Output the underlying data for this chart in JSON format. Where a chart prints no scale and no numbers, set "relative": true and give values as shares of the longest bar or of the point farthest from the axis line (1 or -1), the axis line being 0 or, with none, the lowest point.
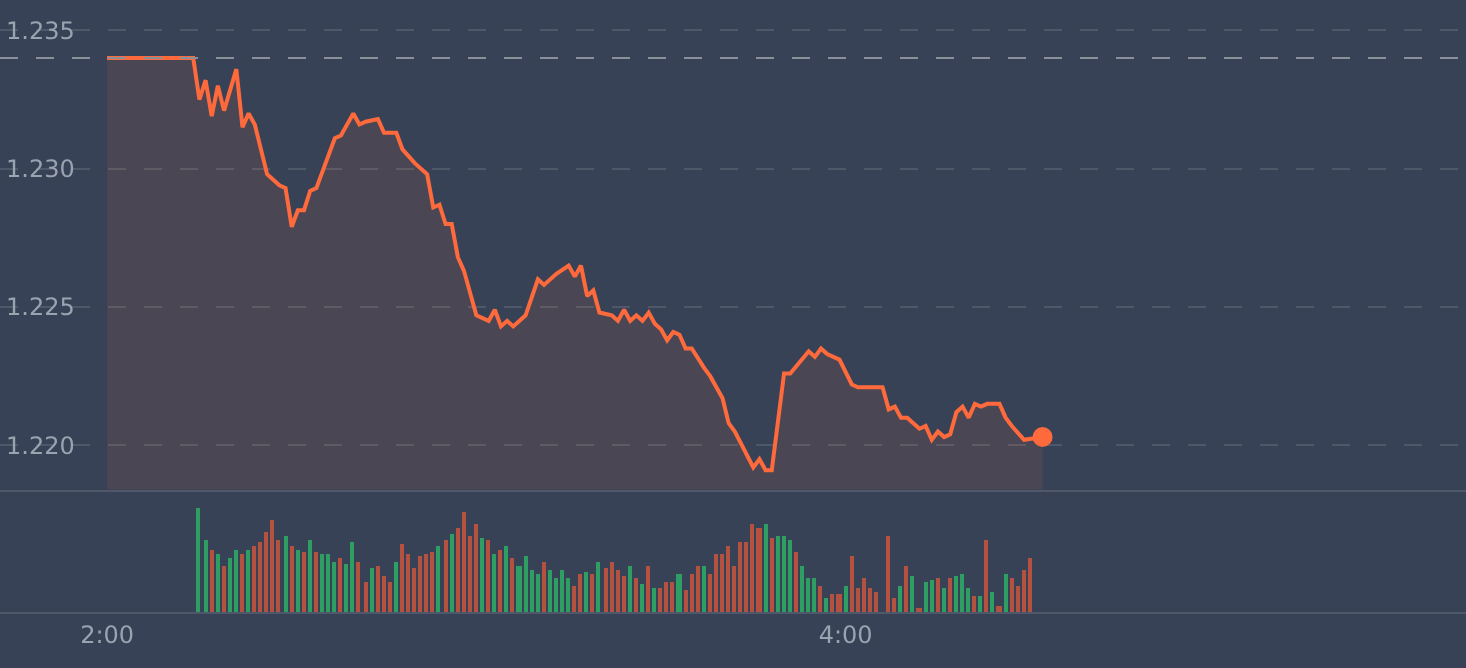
{
  "chart_data": [
    {
      "type": "area",
      "xlim": [
        1.71,
        5.68
      ],
      "ylim": [
        1.2184,
        1.2361
      ],
      "yticks": [
        {
          "value": 1.22,
          "label": "1.220"
        },
        1.225,
        {
          "value": 1.23,
          "label": "1.230"
        },
        1.235
      ],
      "grid": "y",
      "tick_labels": "y",
      "marker": "none",
      "line_style": "solid",
      "ref_lines": [
        {
          "axis": "y",
          "value": 1.234,
          "color": "#8a909a",
          "line_style": "dashed"
        }
      ],
      "series": [
        {
          "type": "area",
          "color": "#ff6a3d",
          "x": [
            2,
            2.2333,
            2.25,
            2.2667,
            2.2833,
            2.3,
            2.3167,
            2.35,
            2.3667,
            2.3833,
            2.4,
            2.4333,
            2.4667,
            2.4833,
            2.5,
            2.5167,
            2.5333,
            2.55,
            2.5667,
            2.6167,
            2.6333,
            2.6667,
            2.6833,
            2.7,
            2.7333,
            2.75,
            2.7833,
            2.8,
            2.8333,
            2.8667,
            2.8833,
            2.9,
            2.9167,
            2.9333,
            2.95,
            2.9667,
            3,
            3.0333,
            3.05,
            3.0667,
            3.0833,
            3.1,
            3.1333,
            3.1667,
            3.1833,
            3.2167,
            3.25,
            3.2667,
            3.2833,
            3.3,
            3.3167,
            3.3333,
            3.3667,
            3.3833,
            3.4,
            3.4167,
            3.4333,
            3.45,
            3.4667,
            3.4833,
            3.5,
            3.5167,
            3.5333,
            3.55,
            3.5667,
            3.5833,
            3.6167,
            3.6333,
            3.6667,
            3.6833,
            3.7,
            3.75,
            3.7667,
            3.7833,
            3.8,
            3.8333,
            3.85,
            3.9,
            3.9167,
            3.9333,
            3.95,
            3.9833,
            4.0167,
            4.0333,
            4.1,
            4.1167,
            4.1333,
            4.15,
            4.1667,
            4.2,
            4.2167,
            4.2333,
            4.25,
            4.2667,
            4.2833,
            4.3,
            4.3167,
            4.3333,
            4.35,
            4.3667,
            4.3833,
            4.4167,
            4.4333,
            4.45,
            4.4833,
            4.5333
          ],
          "values": [
            1.234,
            1.234,
            1.2325,
            1.2332,
            1.2319,
            1.233,
            1.2321,
            1.2336,
            1.2315,
            1.232,
            1.2316,
            1.2298,
            1.2294,
            1.2293,
            1.2279,
            1.2285,
            1.2285,
            1.2292,
            1.2293,
            1.2311,
            1.2312,
            1.232,
            1.2316,
            1.2317,
            1.2318,
            1.2313,
            1.2313,
            1.2307,
            1.2302,
            1.2298,
            1.2286,
            1.2287,
            1.228,
            1.228,
            1.2268,
            1.2263,
            1.2247,
            1.2245,
            1.2249,
            1.2243,
            1.2245,
            1.2243,
            1.2247,
            1.226,
            1.2258,
            1.2262,
            1.2265,
            1.2261,
            1.2265,
            1.2254,
            1.2256,
            1.2248,
            1.2247,
            1.2245,
            1.2249,
            1.2245,
            1.2247,
            1.2245,
            1.2248,
            1.2244,
            1.2242,
            1.2238,
            1.2241,
            1.224,
            1.2235,
            1.2235,
            1.2228,
            1.2225,
            1.2217,
            1.2208,
            1.2205,
            1.2192,
            1.2195,
            1.2191,
            1.2191,
            1.2226,
            1.2226,
            1.2234,
            1.2232,
            1.2235,
            1.2233,
            1.2231,
            1.2222,
            1.2221,
            1.2221,
            1.2213,
            1.2214,
            1.221,
            1.221,
            1.2206,
            1.2207,
            1.2202,
            1.2205,
            1.2203,
            1.2204,
            1.2212,
            1.2214,
            1.221,
            1.2215,
            1.2214,
            1.2215,
            1.2215,
            1.221,
            1.2207,
            1.2202,
            1.2203
          ]
        },
        {
          "type": "scatter",
          "color": "#ff6a3d",
          "marker": "circle",
          "x": [
            4.5333
          ],
          "values": [
            1.2203
          ]
        }
      ]
    },
    {
      "type": "bar",
      "relative": true,
      "xlim": [
        1.71,
        5.68
      ],
      "xticks": [
        {
          "value": 2,
          "label": "2:00"
        },
        {
          "value": 4,
          "label": "4:00"
        }
      ],
      "tick_labels": "x",
      "x": [
        2.25,
        2.2667,
        2.2833,
        2.3,
        2.3167,
        2.3333,
        2.35,
        2.3667,
        2.3833,
        2.4,
        2.4167,
        2.4333,
        2.45,
        2.4667,
        2.4833,
        2.5,
        2.5167,
        2.5333,
        2.55,
        2.5667,
        2.5833,
        2.6,
        2.6167,
        2.6333,
        2.65,
        2.6667,
        2.6833,
        2.7,
        2.7167,
        2.7333,
        2.75,
        2.7667,
        2.7833,
        2.8,
        2.8167,
        2.8333,
        2.85,
        2.8667,
        2.8833,
        2.9,
        2.9167,
        2.9333,
        2.95,
        2.9667,
        2.9833,
        3,
        3.0167,
        3.0333,
        3.05,
        3.0667,
        3.0833,
        3.1,
        3.1167,
        3.1333,
        3.15,
        3.1667,
        3.1833,
        3.2,
        3.2167,
        3.2333,
        3.25,
        3.2667,
        3.2833,
        3.3,
        3.3167,
        3.3333,
        3.35,
        3.3667,
        3.3833,
        3.4,
        3.4167,
        3.4333,
        3.45,
        3.4667,
        3.4833,
        3.5,
        3.5167,
        3.5333,
        3.55,
        3.5667,
        3.5833,
        3.6,
        3.6167,
        3.6333,
        3.65,
        3.6667,
        3.6833,
        3.7,
        3.7167,
        3.7333,
        3.75,
        3.7667,
        3.7833,
        3.8,
        3.8167,
        3.8333,
        3.85,
        3.8667,
        3.8833,
        3.9,
        3.9167,
        3.9333,
        3.95,
        3.9667,
        3.9833,
        4,
        4.0167,
        4.0333,
        4.05,
        4.0667,
        4.0833,
        4.1,
        4.1167,
        4.1333,
        4.15,
        4.1667,
        4.1833,
        4.2,
        4.2167,
        4.2333,
        4.25,
        4.2667,
        4.2833,
        4.3,
        4.3167,
        4.3333,
        4.35,
        4.3667,
        4.3833,
        4.4,
        4.4167,
        4.4333,
        4.45,
        4.4667,
        4.4833,
        4.5
      ],
      "values": [
        1.0,
        0.69,
        0.6,
        0.55,
        0.45,
        0.51,
        0.59,
        0.55,
        0.59,
        0.64,
        0.67,
        0.77,
        0.89,
        0.69,
        0.73,
        0.64,
        0.59,
        0.57,
        0.69,
        0.57,
        0.55,
        0.55,
        0.49,
        0.51,
        0.47,
        0.67,
        0.48,
        0.29,
        0.43,
        0.44,
        0.35,
        0.28,
        0.49,
        0.65,
        0.55,
        0.43,
        0.53,
        0.55,
        0.57,
        0.63,
        0.69,
        0.75,
        0.8,
        0.97,
        0.73,
        0.84,
        0.72,
        0.69,
        0.56,
        0.6,
        0.64,
        0.51,
        0.45,
        0.53,
        0.4,
        0.37,
        0.49,
        0.4,
        0.33,
        0.41,
        0.33,
        0.25,
        0.36,
        0.39,
        0.36,
        0.48,
        0.43,
        0.48,
        0.4,
        0.35,
        0.44,
        0.33,
        0.27,
        0.44,
        0.24,
        0.24,
        0.29,
        0.28,
        0.36,
        0.21,
        0.37,
        0.45,
        0.44,
        0.37,
        0.56,
        0.55,
        0.64,
        0.45,
        0.67,
        0.68,
        0.84,
        0.8,
        0.84,
        0.71,
        0.73,
        0.73,
        0.69,
        0.57,
        0.45,
        0.33,
        0.32,
        0.25,
        0.13,
        0.17,
        0.17,
        0.25,
        0.53,
        0.24,
        0.33,
        0.24,
        0.19,
        null,
        0.73,
        0.13,
        0.25,
        0.45,
        0.35,
        0.04,
        0.28,
        0.31,
        0.33,
        0.23,
        0.33,
        0.35,
        0.37,
        0.23,
        0.15,
        0.15,
        0.69,
        0.19,
        0.05,
        0.37,
        0.33,
        0.25,
        0.41,
        0.52
      ],
      "colors": [
        "#2e9e63",
        "#2e9e63",
        "#b5523f",
        "#2e9e63",
        "#b5523f",
        "#2e9e63",
        "#2e9e63",
        "#b5523f",
        "#2e9e63",
        "#b5523f",
        "#b5523f",
        "#b5523f",
        "#b5523f",
        "#b5523f",
        "#2e9e63",
        "#b5523f",
        "#2e9e63",
        "#b5523f",
        "#2e9e63",
        "#b5523f",
        "#2e9e63",
        "#2e9e63",
        "#2e9e63",
        "#b5523f",
        "#2e9e63",
        "#2e9e63",
        "#b5523f",
        "#b5523f",
        "#2e9e63",
        "#b5523f",
        "#b5523f",
        "#b5523f",
        "#2e9e63",
        "#b5523f",
        "#b5523f",
        "#b5523f",
        "#b5523f",
        "#b5523f",
        "#b5523f",
        "#2e9e63",
        "#b5523f",
        "#2e9e63",
        "#b5523f",
        "#b5523f",
        "#b5523f",
        "#b5523f",
        "#2e9e63",
        "#b5523f",
        "#2e9e63",
        "#b5523f",
        "#2e9e63",
        "#b5523f",
        "#2e9e63",
        "#2e9e63",
        "#2e9e63",
        "#2e9e63",
        "#b5523f",
        "#2e9e63",
        "#2e9e63",
        "#2e9e63",
        "#2e9e63",
        "#b5523f",
        "#b5523f",
        "#2e9e63",
        "#b5523f",
        "#2e9e63",
        "#b5523f",
        "#b5523f",
        "#b5523f",
        "#b5523f",
        "#2e9e63",
        "#b5523f",
        "#2e9e63",
        "#b5523f",
        "#2e9e63",
        "#b5523f",
        "#b5523f",
        "#b5523f",
        "#2e9e63",
        "#b5523f",
        "#b5523f",
        "#b5523f",
        "#2e9e63",
        "#b5523f",
        "#b5523f",
        "#b5523f",
        "#b5523f",
        "#b5523f",
        "#b5523f",
        "#b5523f",
        "#b5523f",
        "#b5523f",
        "#2e9e63",
        "#b5523f",
        "#2e9e63",
        "#2e9e63",
        "#2e9e63",
        "#b5523f",
        "#2e9e63",
        "#2e9e63",
        "#2e9e63",
        "#b5523f",
        "#2e9e63",
        "#b5523f",
        "#b5523f",
        "#2e9e63",
        "#b5523f",
        "#b5523f",
        "#b5523f",
        "#b5523f",
        "#b5523f",
        "#b5523f",
        "#b5523f",
        "#b5523f",
        "#2e9e63",
        "#b5523f",
        "#2e9e63",
        "#b5523f",
        "#2e9e63",
        "#2e9e63",
        "#b5523f",
        "#2e9e63",
        "#b5523f",
        "#2e9e63",
        "#2e9e63",
        "#2e9e63",
        "#b5523f",
        "#2e9e63",
        "#b5523f",
        "#2e9e63",
        "#b5523f",
        "#2e9e63",
        "#b5523f",
        "#b5523f",
        "#b5523f",
        "#b5523f"
      ]
    }
  ]
}
